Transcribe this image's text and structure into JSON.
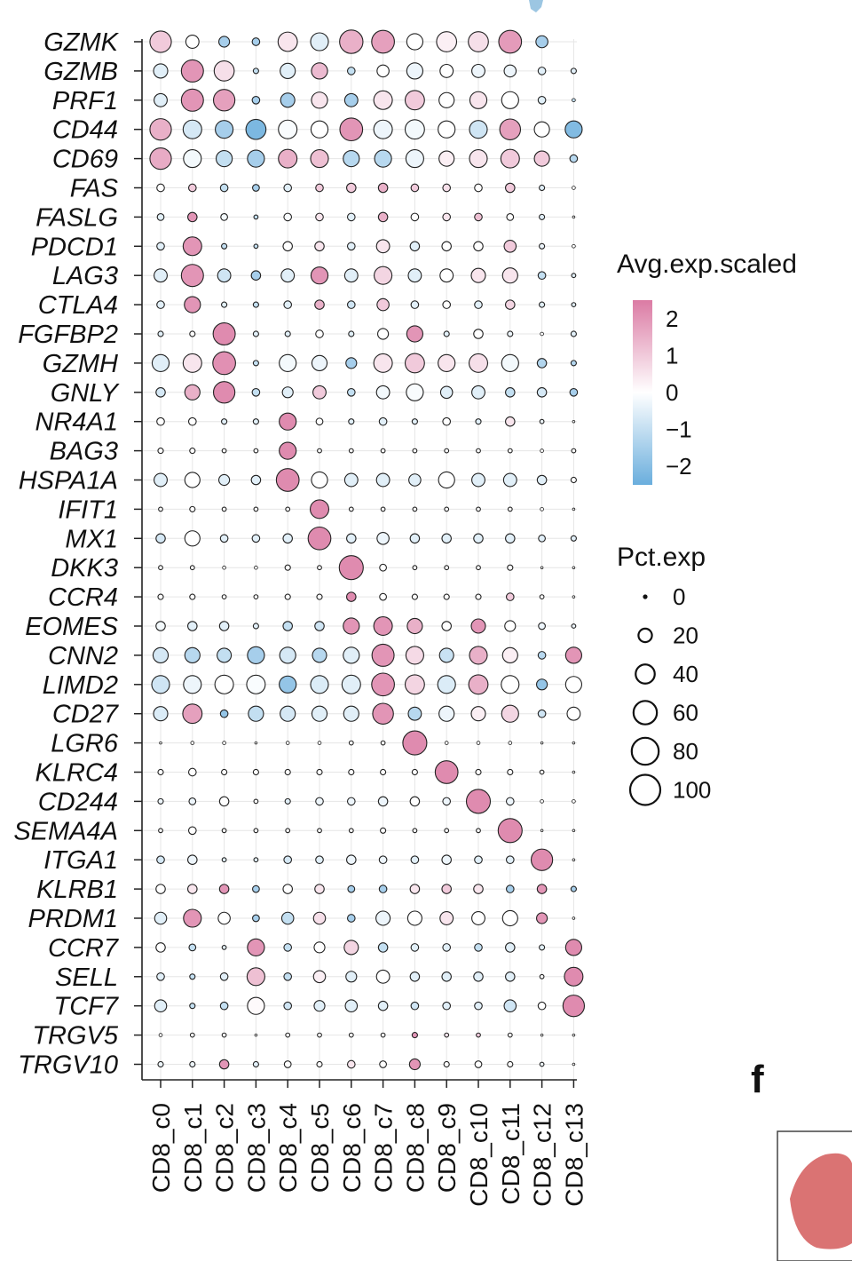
{
  "panel_letter": "f",
  "chart_data": {
    "type": "dotplot",
    "genes": [
      "GZMK",
      "GZMB",
      "PRF1",
      "CD44",
      "CD69",
      "FAS",
      "FASLG",
      "PDCD1",
      "LAG3",
      "CTLA4",
      "FGFBP2",
      "GZMH",
      "GNLY",
      "NR4A1",
      "BAG3",
      "HSPA1A",
      "IFIT1",
      "MX1",
      "DKK3",
      "CCR4",
      "EOMES",
      "CNN2",
      "LIMD2",
      "CD27",
      "LGR6",
      "KLRC4",
      "CD244",
      "SEMA4A",
      "ITGA1",
      "KLRB1",
      "PRDM1",
      "CCR7",
      "SELL",
      "TCF7",
      "TRGV5",
      "TRGV10"
    ],
    "clusters": [
      "CD8_c0",
      "CD8_c1",
      "CD8_c2",
      "CD8_c3",
      "CD8_c4",
      "CD8_c5",
      "CD8_c6",
      "CD8_c7",
      "CD8_c8",
      "CD8_c9",
      "CD8_c10",
      "CD8_c11",
      "CD8_c12",
      "CD8_c13"
    ],
    "avg_exp_scaled": [
      [
        1.0,
        0.0,
        -1.5,
        -1.5,
        0.5,
        -0.5,
        1.5,
        1.8,
        0.0,
        0.3,
        0.6,
        1.9,
        -1.5,
        null
      ],
      [
        -0.5,
        2.0,
        0.6,
        -1.0,
        -0.5,
        1.3,
        -1.0,
        0.0,
        -0.3,
        0.0,
        -0.3,
        -0.3,
        -0.5,
        -0.5
      ],
      [
        -0.5,
        2.0,
        1.8,
        -1.5,
        -1.5,
        0.5,
        -1.5,
        0.5,
        1.0,
        0.0,
        0.5,
        0.0,
        -0.5,
        -1.0
      ],
      [
        1.5,
        -0.7,
        -1.5,
        -2.2,
        -0.1,
        0.0,
        2.0,
        -0.3,
        -0.2,
        0.0,
        -0.8,
        1.8,
        0.0,
        -2.1
      ],
      [
        1.6,
        -0.2,
        -1.0,
        -1.5,
        1.5,
        1.2,
        -1.2,
        -1.2,
        -0.3,
        0.3,
        0.5,
        1.0,
        1.0,
        -1.2
      ],
      [
        0.0,
        1.0,
        -1.0,
        -1.5,
        -0.5,
        1.0,
        1.0,
        1.5,
        1.0,
        0.6,
        0.0,
        1.0,
        -0.5,
        0.0
      ],
      [
        -0.5,
        2.0,
        -0.2,
        -1.0,
        -0.1,
        0.5,
        -0.5,
        1.5,
        0.0,
        0.5,
        1.2,
        0.0,
        -0.5,
        0.0
      ],
      [
        -0.5,
        2.0,
        -1.0,
        -1.0,
        0.0,
        0.5,
        -0.5,
        0.5,
        -0.5,
        0.0,
        0.0,
        1.0,
        -0.3,
        0.0
      ],
      [
        -0.5,
        2.0,
        -0.8,
        -1.5,
        -0.5,
        2.0,
        -0.5,
        0.8,
        -0.5,
        0.0,
        0.5,
        0.5,
        -1.0,
        -0.5
      ],
      [
        -0.5,
        2.0,
        -0.5,
        -1.0,
        -0.5,
        1.5,
        -0.8,
        1.0,
        -0.5,
        0.0,
        -0.5,
        0.8,
        -0.5,
        -0.5
      ],
      [
        -0.5,
        0.0,
        2.2,
        -0.5,
        -0.5,
        0.0,
        -0.5,
        0.0,
        2.0,
        -0.5,
        0.0,
        -0.3,
        0.0,
        -0.5
      ],
      [
        -0.5,
        0.5,
        2.1,
        -1.0,
        -0.2,
        -0.3,
        -1.5,
        0.5,
        1.0,
        0.5,
        0.6,
        -0.2,
        -1.3,
        -1.3
      ],
      [
        -0.7,
        1.5,
        2.2,
        -1.0,
        -0.5,
        1.0,
        -1.0,
        -0.2,
        -0.1,
        -0.5,
        -0.5,
        -1.0,
        -0.7,
        -1.5
      ],
      [
        0.0,
        0.0,
        -0.5,
        -0.5,
        2.2,
        0.0,
        -0.5,
        -0.5,
        -0.5,
        0.0,
        -0.5,
        0.5,
        -0.3,
        0.0
      ],
      [
        0.0,
        0.0,
        0.0,
        0.0,
        2.2,
        0.0,
        0.0,
        0.0,
        0.0,
        0.0,
        0.0,
        0.0,
        0.0,
        0.0
      ],
      [
        -0.5,
        0.0,
        -0.5,
        -0.5,
        2.2,
        0.0,
        -0.5,
        -0.5,
        -0.5,
        0.0,
        -0.5,
        -0.5,
        -0.5,
        0.0
      ],
      [
        0.0,
        0.0,
        0.0,
        0.0,
        0.0,
        2.2,
        0.0,
        0.0,
        0.0,
        0.0,
        0.0,
        0.0,
        0.0,
        0.0
      ],
      [
        -0.7,
        0.0,
        -0.5,
        -0.5,
        -0.5,
        2.2,
        -0.5,
        -0.3,
        -0.5,
        -0.5,
        -0.5,
        -0.5,
        -0.5,
        -0.5
      ],
      [
        0.0,
        0.0,
        0.0,
        0.0,
        0.0,
        0.0,
        2.2,
        0.0,
        0.0,
        0.0,
        0.0,
        0.0,
        0.0,
        0.0
      ],
      [
        0.0,
        0.0,
        0.0,
        0.0,
        0.0,
        0.0,
        2.2,
        0.0,
        0.0,
        0.0,
        0.0,
        1.0,
        0.0,
        0.0
      ],
      [
        -0.2,
        -0.5,
        -0.5,
        -0.5,
        -1.0,
        -0.8,
        2.0,
        2.0,
        1.5,
        0.0,
        2.0,
        0.0,
        -0.3,
        -0.3
      ],
      [
        -0.7,
        -1.2,
        -1.0,
        -1.5,
        -0.7,
        -1.2,
        -0.5,
        2.0,
        0.7,
        -0.9,
        1.5,
        0.3,
        -1.2,
        2.0
      ],
      [
        -0.8,
        -0.3,
        0.0,
        -0.1,
        -1.8,
        -0.6,
        -0.5,
        2.0,
        0.8,
        -0.6,
        1.5,
        0.0,
        -1.8,
        0.0
      ],
      [
        -0.6,
        1.8,
        -1.8,
        -1.0,
        -0.7,
        -0.5,
        -0.5,
        2.0,
        -1.2,
        -0.3,
        0.3,
        0.8,
        -0.8,
        0.0
      ],
      [
        0.0,
        0.0,
        0.0,
        0.0,
        0.0,
        0.0,
        0.0,
        0.0,
        2.2,
        0.0,
        0.0,
        0.0,
        0.0,
        0.0
      ],
      [
        0.0,
        0.0,
        0.0,
        0.0,
        0.0,
        0.0,
        0.0,
        0.0,
        0.0,
        2.2,
        0.0,
        0.0,
        0.0,
        0.0
      ],
      [
        -0.3,
        -0.3,
        0.0,
        0.0,
        -0.5,
        -0.3,
        -0.3,
        -0.3,
        0.0,
        -0.3,
        2.2,
        -0.3,
        0.0,
        0.0
      ],
      [
        0.0,
        0.0,
        0.0,
        0.0,
        0.0,
        0.0,
        0.0,
        0.0,
        0.0,
        0.0,
        0.0,
        2.2,
        0.0,
        0.0
      ],
      [
        -0.7,
        -0.3,
        -0.5,
        -0.5,
        -0.7,
        -0.5,
        -0.3,
        -0.3,
        -0.5,
        -0.3,
        -0.5,
        -0.5,
        2.2,
        0.0
      ],
      [
        0.0,
        0.5,
        2.0,
        -1.5,
        0.0,
        0.5,
        -1.5,
        -1.5,
        0.5,
        1.0,
        0.5,
        -1.5,
        2.0,
        -1.5
      ],
      [
        -0.5,
        2.0,
        0.0,
        -1.5,
        -1.0,
        0.6,
        -1.5,
        -0.3,
        0.0,
        0.5,
        0.0,
        0.0,
        2.0,
        0.0
      ],
      [
        0.0,
        -1.0,
        -0.5,
        2.0,
        -1.0,
        0.0,
        0.8,
        -1.0,
        -0.5,
        -0.5,
        -1.0,
        -0.5,
        -0.5,
        2.2
      ],
      [
        -0.5,
        -1.0,
        -0.5,
        1.2,
        -1.0,
        0.3,
        -0.5,
        0.0,
        -0.5,
        -0.5,
        -0.5,
        -0.5,
        0.0,
        2.2
      ],
      [
        -0.5,
        -1.0,
        -1.0,
        0.1,
        -0.8,
        -0.5,
        -0.5,
        -0.5,
        -0.8,
        -0.5,
        -0.5,
        -0.8,
        0.0,
        2.2
      ],
      [
        0.0,
        0.0,
        0.0,
        0.0,
        0.0,
        0.0,
        0.0,
        0.0,
        2.0,
        0.5,
        1.0,
        0.0,
        0.0,
        0.0
      ],
      [
        -0.3,
        -0.3,
        2.0,
        -0.5,
        0.0,
        0.0,
        0.5,
        0.0,
        2.0,
        0.0,
        0.0,
        0.0,
        -0.3,
        0.0
      ]
    ],
    "pct_exp": [
      [
        80,
        30,
        20,
        10,
        65,
        55,
        95,
        90,
        45,
        70,
        70,
        90,
        25,
        0
      ],
      [
        35,
        85,
        70,
        5,
        40,
        45,
        10,
        25,
        45,
        30,
        30,
        25,
        10,
        5
      ],
      [
        30,
        85,
        80,
        10,
        35,
        45,
        30,
        60,
        65,
        40,
        50,
        50,
        10,
        2
      ],
      [
        80,
        60,
        55,
        70,
        60,
        50,
        90,
        60,
        65,
        50,
        55,
        75,
        40,
        50
      ],
      [
        80,
        55,
        45,
        50,
        60,
        55,
        45,
        50,
        55,
        40,
        55,
        60,
        40,
        10
      ],
      [
        10,
        10,
        10,
        8,
        10,
        10,
        15,
        15,
        10,
        10,
        10,
        15,
        5,
        2
      ],
      [
        8,
        15,
        8,
        3,
        10,
        10,
        10,
        15,
        10,
        10,
        10,
        8,
        5,
        1
      ],
      [
        10,
        60,
        5,
        3,
        15,
        15,
        10,
        30,
        15,
        15,
        15,
        25,
        5,
        2
      ],
      [
        30,
        85,
        30,
        15,
        30,
        50,
        30,
        55,
        30,
        30,
        35,
        40,
        10,
        3
      ],
      [
        10,
        45,
        5,
        5,
        10,
        15,
        10,
        25,
        10,
        10,
        10,
        15,
        5,
        3
      ],
      [
        5,
        5,
        85,
        5,
        5,
        10,
        5,
        20,
        45,
        5,
        15,
        5,
        2,
        5
      ],
      [
        50,
        60,
        90,
        5,
        50,
        40,
        20,
        60,
        65,
        50,
        60,
        50,
        15,
        5
      ],
      [
        15,
        40,
        80,
        10,
        20,
        30,
        10,
        30,
        50,
        25,
        30,
        15,
        15,
        10
      ],
      [
        10,
        10,
        5,
        5,
        50,
        8,
        5,
        10,
        5,
        10,
        5,
        15,
        3,
        1
      ],
      [
        5,
        5,
        3,
        3,
        50,
        3,
        3,
        3,
        3,
        3,
        3,
        3,
        2,
        3
      ],
      [
        30,
        40,
        20,
        15,
        90,
        45,
        30,
        30,
        25,
        45,
        30,
        30,
        15,
        5
      ],
      [
        3,
        5,
        3,
        3,
        3,
        60,
        3,
        3,
        3,
        3,
        3,
        3,
        2,
        1
      ],
      [
        15,
        40,
        10,
        10,
        15,
        90,
        15,
        25,
        15,
        15,
        15,
        15,
        8,
        5
      ],
      [
        3,
        3,
        2,
        2,
        5,
        3,
        100,
        8,
        3,
        3,
        3,
        5,
        1,
        1
      ],
      [
        5,
        5,
        3,
        3,
        5,
        5,
        15,
        8,
        5,
        5,
        5,
        10,
        3,
        1
      ],
      [
        15,
        15,
        15,
        5,
        15,
        15,
        45,
        60,
        40,
        15,
        35,
        20,
        8,
        3
      ],
      [
        40,
        40,
        35,
        50,
        45,
        35,
        45,
        85,
        55,
        35,
        55,
        40,
        10,
        45
      ],
      [
        55,
        55,
        60,
        60,
        50,
        55,
        60,
        90,
        65,
        55,
        65,
        55,
        20,
        45
      ],
      [
        35,
        65,
        10,
        40,
        40,
        40,
        40,
        75,
        30,
        40,
        35,
        50,
        10,
        30
      ],
      [
        1,
        2,
        2,
        1,
        2,
        2,
        3,
        3,
        100,
        2,
        2,
        2,
        1,
        1
      ],
      [
        5,
        10,
        5,
        5,
        5,
        5,
        5,
        5,
        5,
        90,
        5,
        5,
        3,
        1
      ],
      [
        5,
        8,
        15,
        3,
        5,
        10,
        10,
        15,
        15,
        10,
        100,
        10,
        2,
        2
      ],
      [
        3,
        10,
        3,
        3,
        3,
        3,
        3,
        5,
        3,
        3,
        3,
        100,
        1,
        1
      ],
      [
        10,
        15,
        3,
        3,
        10,
        10,
        15,
        10,
        10,
        15,
        10,
        10,
        80,
        1
      ],
      [
        15,
        15,
        15,
        8,
        15,
        15,
        8,
        10,
        15,
        15,
        15,
        10,
        15,
        5
      ],
      [
        25,
        55,
        25,
        8,
        25,
        25,
        10,
        35,
        35,
        30,
        30,
        40,
        20,
        1
      ],
      [
        15,
        8,
        3,
        50,
        10,
        20,
        35,
        15,
        10,
        10,
        10,
        15,
        5,
        45
      ],
      [
        10,
        5,
        10,
        55,
        10,
        25,
        20,
        30,
        15,
        15,
        15,
        15,
        3,
        60
      ],
      [
        25,
        5,
        10,
        50,
        10,
        20,
        25,
        15,
        10,
        10,
        10,
        25,
        10,
        80
      ],
      [
        2,
        3,
        3,
        1,
        3,
        3,
        3,
        3,
        5,
        3,
        3,
        3,
        1,
        1
      ],
      [
        5,
        5,
        15,
        5,
        8,
        5,
        10,
        8,
        20,
        5,
        8,
        5,
        3,
        1
      ]
    ],
    "color_scale": {
      "title": "Avg.exp.scaled",
      "min": -2.5,
      "max": 2.5,
      "ticks": [
        "2",
        "1",
        "0",
        "−1",
        "−2"
      ],
      "tick_values": [
        2,
        1,
        0,
        -1,
        -2
      ],
      "low_color": "#6aaedd",
      "mid_color": "#ffffff",
      "high_color": "#db7ba4"
    },
    "size_scale": {
      "title": "Pct.exp",
      "ticks": [
        "0",
        "20",
        "40",
        "60",
        "80",
        "100"
      ],
      "tick_values": [
        0,
        20,
        40,
        60,
        80,
        100
      ]
    },
    "grid": true
  }
}
